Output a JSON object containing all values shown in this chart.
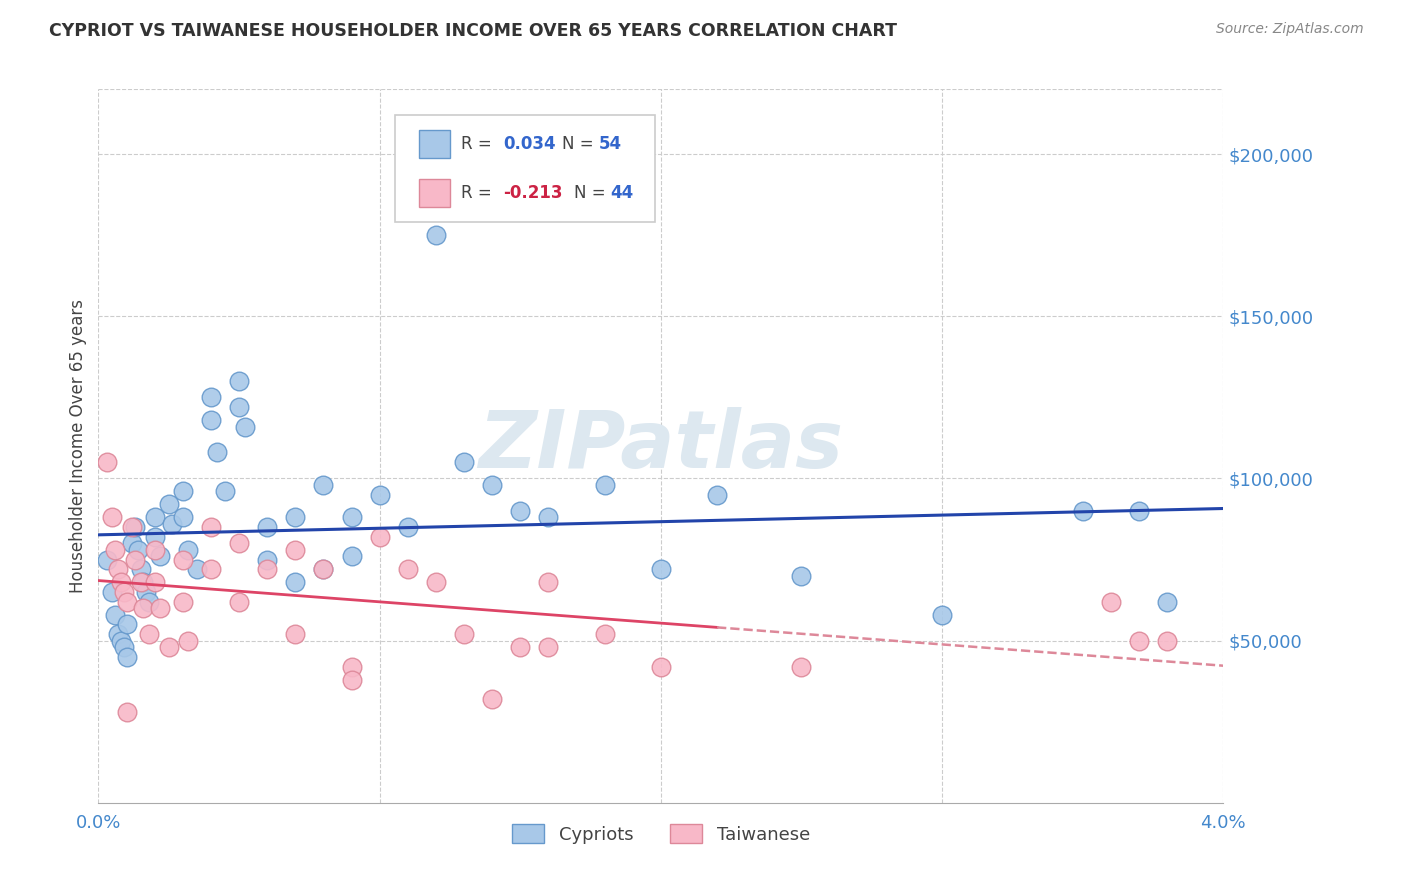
{
  "title": "CYPRIOT VS TAIWANESE HOUSEHOLDER INCOME OVER 65 YEARS CORRELATION CHART",
  "source": "Source: ZipAtlas.com",
  "ylabel": "Householder Income Over 65 years",
  "xlim": [
    0.0,
    0.04
  ],
  "ylim": [
    0,
    220000
  ],
  "xticks": [
    0.0,
    0.01,
    0.02,
    0.03,
    0.04
  ],
  "xtick_labels": [
    "0.0%",
    "",
    "",
    "",
    "4.0%"
  ],
  "ytick_positions_right": [
    200000,
    150000,
    100000,
    50000
  ],
  "grid_color": "#cccccc",
  "background_color": "#ffffff",
  "cypriot_color": "#a8c8e8",
  "cypriot_edge_color": "#6699cc",
  "taiwanese_color": "#f8b8c8",
  "taiwanese_edge_color": "#dd8899",
  "trend_cypriot_color": "#2244aa",
  "trend_taiwanese_solid_color": "#dd4466",
  "trend_taiwanese_dash_color": "#dd8899",
  "R_cypriot": 0.034,
  "N_cypriot": 54,
  "R_taiwanese": -0.213,
  "N_taiwanese": 44,
  "legend_label_cypriot": "Cypriots",
  "legend_label_taiwanese": "Taiwanese",
  "watermark": "ZIPatlas",
  "cypriot_x": [
    0.0003,
    0.0005,
    0.0006,
    0.0007,
    0.0008,
    0.0009,
    0.001,
    0.001,
    0.0012,
    0.0013,
    0.0014,
    0.0015,
    0.0016,
    0.0017,
    0.0018,
    0.002,
    0.002,
    0.0022,
    0.0025,
    0.0026,
    0.003,
    0.003,
    0.0032,
    0.0035,
    0.004,
    0.004,
    0.0042,
    0.0045,
    0.005,
    0.005,
    0.0052,
    0.006,
    0.006,
    0.007,
    0.007,
    0.008,
    0.008,
    0.009,
    0.009,
    0.01,
    0.011,
    0.012,
    0.013,
    0.014,
    0.015,
    0.016,
    0.018,
    0.02,
    0.022,
    0.025,
    0.03,
    0.035,
    0.037,
    0.038
  ],
  "cypriot_y": [
    75000,
    65000,
    58000,
    52000,
    50000,
    48000,
    55000,
    45000,
    80000,
    85000,
    78000,
    72000,
    68000,
    65000,
    62000,
    88000,
    82000,
    76000,
    92000,
    86000,
    96000,
    88000,
    78000,
    72000,
    125000,
    118000,
    108000,
    96000,
    130000,
    122000,
    116000,
    85000,
    75000,
    88000,
    68000,
    98000,
    72000,
    88000,
    76000,
    95000,
    85000,
    175000,
    105000,
    98000,
    90000,
    88000,
    98000,
    72000,
    95000,
    70000,
    58000,
    90000,
    90000,
    62000
  ],
  "taiwanese_x": [
    0.0003,
    0.0005,
    0.0006,
    0.0007,
    0.0008,
    0.0009,
    0.001,
    0.001,
    0.0012,
    0.0013,
    0.0015,
    0.0016,
    0.0018,
    0.002,
    0.002,
    0.0022,
    0.0025,
    0.003,
    0.003,
    0.0032,
    0.004,
    0.004,
    0.005,
    0.005,
    0.006,
    0.007,
    0.007,
    0.008,
    0.009,
    0.009,
    0.01,
    0.011,
    0.012,
    0.013,
    0.014,
    0.015,
    0.016,
    0.016,
    0.018,
    0.02,
    0.025,
    0.036,
    0.037,
    0.038
  ],
  "taiwanese_y": [
    105000,
    88000,
    78000,
    72000,
    68000,
    65000,
    62000,
    28000,
    85000,
    75000,
    68000,
    60000,
    52000,
    78000,
    68000,
    60000,
    48000,
    75000,
    62000,
    50000,
    85000,
    72000,
    80000,
    62000,
    72000,
    78000,
    52000,
    72000,
    42000,
    38000,
    82000,
    72000,
    68000,
    52000,
    32000,
    48000,
    68000,
    48000,
    52000,
    42000,
    42000,
    62000,
    50000,
    50000
  ]
}
